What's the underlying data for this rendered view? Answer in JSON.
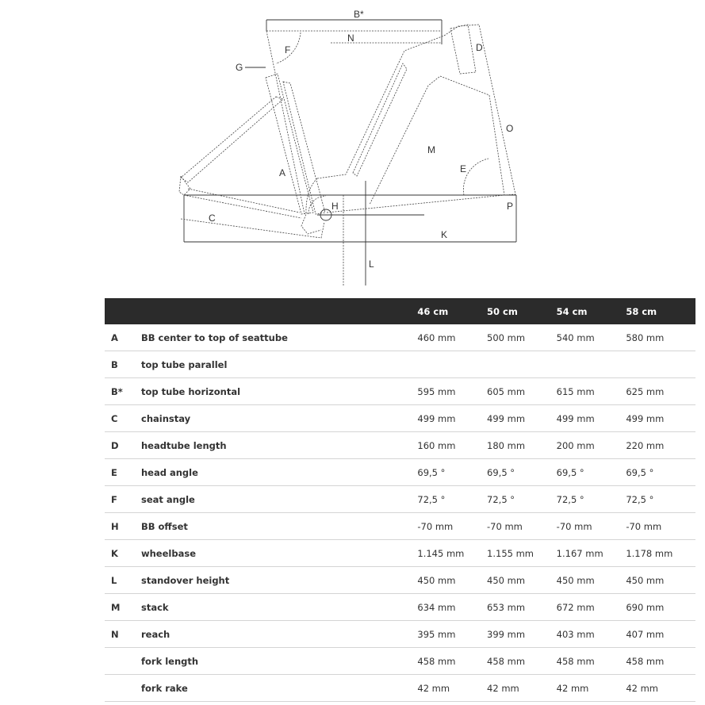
{
  "diagram": {
    "labels": {
      "Bstar": "B*",
      "N": "N",
      "F": "F",
      "G": "G",
      "D": "D",
      "O": "O",
      "M": "M",
      "E": "E",
      "A": "A",
      "H": "H",
      "P": "P",
      "C": "C",
      "K": "K",
      "L": "L"
    }
  },
  "table": {
    "headers": [
      "",
      "",
      "46 cm",
      "50 cm",
      "54 cm",
      "58 cm"
    ],
    "rows": [
      {
        "letter": "A",
        "name": "BB center to top of seattube",
        "values": [
          "460 mm",
          "500 mm",
          "540 mm",
          "580 mm"
        ]
      },
      {
        "letter": "B",
        "name": "top tube parallel",
        "values": [
          "",
          "",
          "",
          ""
        ]
      },
      {
        "letter": "B*",
        "name": "top tube horizontal",
        "values": [
          "595 mm",
          "605 mm",
          "615 mm",
          "625 mm"
        ]
      },
      {
        "letter": "C",
        "name": "chainstay",
        "values": [
          "499 mm",
          "499 mm",
          "499 mm",
          "499 mm"
        ]
      },
      {
        "letter": "D",
        "name": "headtube length",
        "values": [
          "160 mm",
          "180 mm",
          "200 mm",
          "220 mm"
        ]
      },
      {
        "letter": "E",
        "name": "head angle",
        "values": [
          "69,5 °",
          "69,5 °",
          "69,5 °",
          "69,5 °"
        ]
      },
      {
        "letter": "F",
        "name": "seat angle",
        "values": [
          "72,5 °",
          "72,5 °",
          "72,5 °",
          "72,5 °"
        ]
      },
      {
        "letter": "H",
        "name": "BB offset",
        "values": [
          "-70 mm",
          "-70 mm",
          "-70 mm",
          "-70 mm"
        ]
      },
      {
        "letter": "K",
        "name": "wheelbase",
        "values": [
          "1.145 mm",
          "1.155 mm",
          "1.167 mm",
          "1.178 mm"
        ]
      },
      {
        "letter": "L",
        "name": "standover height",
        "values": [
          "450 mm",
          "450 mm",
          "450 mm",
          "450 mm"
        ]
      },
      {
        "letter": "M",
        "name": "stack",
        "values": [
          "634 mm",
          "653 mm",
          "672 mm",
          "690 mm"
        ]
      },
      {
        "letter": "N",
        "name": "reach",
        "values": [
          "395 mm",
          "399 mm",
          "403 mm",
          "407 mm"
        ]
      },
      {
        "letter": "",
        "name": "fork length",
        "values": [
          "458 mm",
          "458 mm",
          "458 mm",
          "458 mm"
        ]
      },
      {
        "letter": "",
        "name": "fork rake",
        "values": [
          "42 mm",
          "42 mm",
          "42 mm",
          "42 mm"
        ]
      }
    ]
  }
}
